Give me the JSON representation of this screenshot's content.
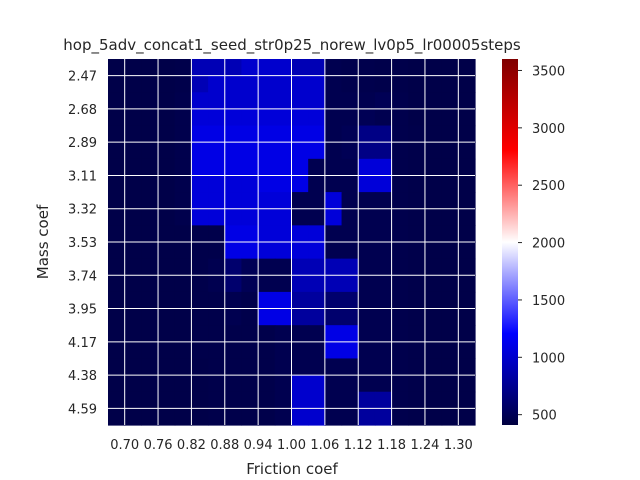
{
  "chart_data": {
    "type": "heatmap",
    "title": "hop_5adv_concat1_seed_str0p25_norew_lv0p5_lr00005steps",
    "xlabel": "Friction coef",
    "ylabel": "Mass coef",
    "x_tick_labels": [
      "0.70",
      "0.76",
      "0.82",
      "0.88",
      "0.94",
      "1.00",
      "1.06",
      "1.12",
      "1.18",
      "1.24",
      "1.30"
    ],
    "y_tick_labels": [
      "2.47",
      "2.68",
      "2.89",
      "3.11",
      "3.32",
      "3.53",
      "3.74",
      "3.95",
      "4.17",
      "4.38",
      "4.59"
    ],
    "colorbar": {
      "ticks": [
        500,
        1000,
        1500,
        2000,
        2500,
        3000,
        3500
      ],
      "range": [
        410,
        3600
      ],
      "colormap": [
        "#00003f",
        "#0000ff",
        "#ffffff",
        "#ff0000",
        "#7f0000"
      ]
    },
    "grid": true,
    "values": [
      [
        450,
        450,
        450,
        450,
        460,
        900,
        900,
        900,
        1000,
        1000,
        1000,
        900,
        900,
        480,
        470,
        470,
        460,
        460,
        450,
        450,
        450,
        450
      ],
      [
        450,
        450,
        450,
        450,
        460,
        900,
        1000,
        1000,
        1000,
        1000,
        1000,
        1000,
        1000,
        480,
        470,
        470,
        460,
        460,
        450,
        450,
        450,
        450
      ],
      [
        450,
        450,
        450,
        450,
        470,
        1000,
        1000,
        1000,
        1000,
        1000,
        1000,
        1000,
        1000,
        480,
        480,
        480,
        500,
        470,
        450,
        450,
        450,
        450
      ],
      [
        450,
        450,
        450,
        450,
        470,
        1050,
        1050,
        1050,
        1050,
        1050,
        1050,
        1050,
        1050,
        480,
        480,
        500,
        480,
        470,
        450,
        450,
        450,
        450
      ],
      [
        450,
        450,
        450,
        450,
        470,
        1100,
        1100,
        1100,
        1100,
        1100,
        1100,
        1100,
        1100,
        480,
        500,
        700,
        700,
        470,
        460,
        450,
        450,
        450
      ],
      [
        450,
        450,
        450,
        450,
        470,
        1100,
        1100,
        1100,
        1100,
        1100,
        1100,
        1100,
        1100,
        480,
        500,
        700,
        700,
        470,
        460,
        450,
        450,
        450
      ],
      [
        450,
        450,
        450,
        450,
        470,
        1100,
        1100,
        1100,
        1100,
        1100,
        1100,
        1100,
        480,
        480,
        480,
        1050,
        1050,
        470,
        460,
        450,
        450,
        450
      ],
      [
        450,
        450,
        450,
        450,
        470,
        1050,
        1050,
        1050,
        1050,
        1100,
        1100,
        1100,
        480,
        480,
        480,
        1050,
        1050,
        470,
        460,
        450,
        450,
        450
      ],
      [
        450,
        450,
        450,
        450,
        470,
        1050,
        1050,
        1050,
        1050,
        1050,
        1050,
        480,
        480,
        1050,
        480,
        480,
        480,
        470,
        460,
        450,
        450,
        450
      ],
      [
        450,
        450,
        450,
        450,
        470,
        1050,
        1050,
        1050,
        1050,
        1050,
        1050,
        480,
        480,
        1050,
        480,
        480,
        480,
        470,
        460,
        450,
        450,
        450
      ],
      [
        450,
        450,
        450,
        450,
        450,
        460,
        460,
        1100,
        1100,
        1050,
        1050,
        1050,
        1050,
        480,
        480,
        480,
        480,
        470,
        460,
        450,
        450,
        450
      ],
      [
        450,
        450,
        450,
        450,
        450,
        460,
        460,
        1100,
        1100,
        1050,
        1050,
        1050,
        1050,
        480,
        480,
        480,
        480,
        470,
        460,
        450,
        450,
        450
      ],
      [
        450,
        450,
        450,
        450,
        450,
        460,
        480,
        600,
        500,
        480,
        480,
        900,
        900,
        900,
        900,
        480,
        480,
        470,
        460,
        450,
        450,
        450
      ],
      [
        450,
        450,
        450,
        450,
        450,
        460,
        480,
        600,
        500,
        480,
        480,
        900,
        900,
        900,
        900,
        480,
        480,
        470,
        460,
        450,
        450,
        450
      ],
      [
        450,
        450,
        450,
        450,
        450,
        460,
        460,
        480,
        460,
        1100,
        1100,
        800,
        800,
        600,
        600,
        480,
        480,
        470,
        460,
        450,
        450,
        450
      ],
      [
        450,
        450,
        450,
        450,
        450,
        460,
        460,
        480,
        460,
        1100,
        1100,
        800,
        800,
        600,
        600,
        480,
        480,
        470,
        460,
        450,
        450,
        450
      ],
      [
        450,
        450,
        450,
        450,
        450,
        460,
        460,
        460,
        460,
        460,
        480,
        480,
        480,
        1100,
        1100,
        480,
        480,
        470,
        460,
        450,
        450,
        450
      ],
      [
        450,
        450,
        450,
        450,
        450,
        460,
        460,
        460,
        460,
        460,
        480,
        480,
        480,
        1100,
        1100,
        480,
        480,
        470,
        460,
        450,
        450,
        450
      ],
      [
        450,
        450,
        450,
        450,
        450,
        450,
        460,
        460,
        460,
        460,
        480,
        480,
        480,
        480,
        480,
        480,
        480,
        470,
        460,
        450,
        450,
        450
      ],
      [
        450,
        450,
        450,
        450,
        450,
        450,
        460,
        460,
        460,
        460,
        480,
        1000,
        1000,
        480,
        480,
        480,
        480,
        470,
        460,
        450,
        450,
        450
      ],
      [
        450,
        450,
        450,
        450,
        450,
        450,
        460,
        460,
        460,
        460,
        480,
        1000,
        1000,
        480,
        480,
        800,
        800,
        470,
        460,
        450,
        450,
        450
      ],
      [
        450,
        450,
        450,
        450,
        450,
        450,
        460,
        460,
        460,
        460,
        480,
        1000,
        1000,
        480,
        480,
        800,
        800,
        470,
        460,
        450,
        450,
        450
      ]
    ]
  }
}
